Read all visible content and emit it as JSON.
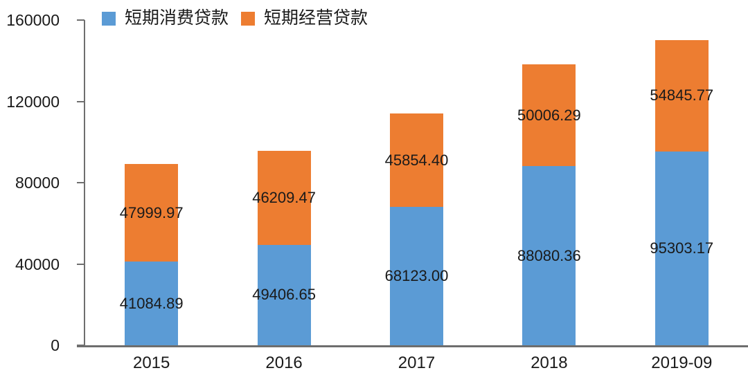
{
  "chart_data": {
    "type": "bar",
    "stacked": true,
    "title": "",
    "xlabel": "",
    "ylabel": "",
    "categories": [
      "2015",
      "2016",
      "2017",
      "2018",
      "2019-09"
    ],
    "series": [
      {
        "name": "短期消费贷款",
        "color": "#5B9BD5",
        "values": [
          41084.89,
          49406.65,
          68123.0,
          88080.36,
          95303.17
        ],
        "labels": [
          "41084.89",
          "49406.65",
          "68123.00",
          "88080.36",
          "95303.17"
        ]
      },
      {
        "name": "短期经营贷款",
        "color": "#ED7D31",
        "values": [
          47999.97,
          46209.47,
          45854.4,
          50006.29,
          54845.77
        ],
        "labels": [
          "47999.97",
          "46209.47",
          "45854.40",
          "50006.29",
          "54845.77"
        ]
      }
    ],
    "y_ticks": [
      {
        "value": 0,
        "label": "0"
      },
      {
        "value": 40000,
        "label": "40000"
      },
      {
        "value": 80000,
        "label": "80000"
      },
      {
        "value": 120000,
        "label": "120000"
      },
      {
        "value": 160000,
        "label": "160000"
      }
    ],
    "ylim": [
      0,
      160000
    ],
    "grid": false,
    "legend_position": "top"
  },
  "colors": {
    "axis": "#6e6e6e",
    "text": "#1a1a1a",
    "background": "#ffffff"
  }
}
